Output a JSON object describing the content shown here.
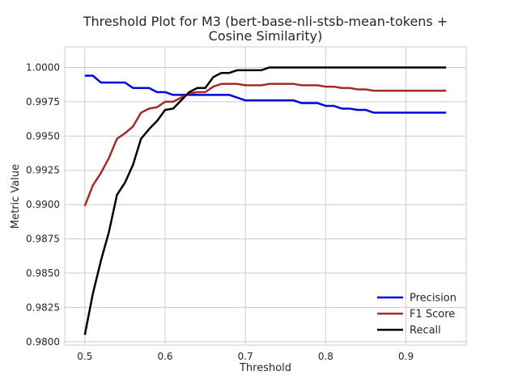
{
  "chart_data": {
    "type": "line",
    "title": "Threshold Plot for M3 (bert-base-nli-stsb-mean-tokens +",
    "title_line2": "Cosine Similarity)",
    "xlabel": "Threshold",
    "ylabel": "Metric Value",
    "xlim": [
      0.475,
      0.975
    ],
    "ylim": [
      0.97975,
      1.0015
    ],
    "x_ticks": [
      0.5,
      0.6,
      0.7,
      0.8,
      0.9
    ],
    "x_tick_labels": [
      "0.5",
      "0.6",
      "0.7",
      "0.8",
      "0.9"
    ],
    "y_ticks": [
      0.98,
      0.9825,
      0.985,
      0.9875,
      0.99,
      0.9925,
      0.995,
      0.9975,
      1.0
    ],
    "y_tick_labels": [
      "0.9800",
      "0.9825",
      "0.9850",
      "0.9875",
      "0.9900",
      "0.9925",
      "0.9950",
      "0.9975",
      "1.0000"
    ],
    "grid": true,
    "legend_position": "bottom-right",
    "x": [
      0.5,
      0.51,
      0.52,
      0.53,
      0.54,
      0.55,
      0.56,
      0.57,
      0.58,
      0.59,
      0.6,
      0.61,
      0.62,
      0.63,
      0.64,
      0.65,
      0.66,
      0.67,
      0.68,
      0.69,
      0.7,
      0.71,
      0.72,
      0.73,
      0.74,
      0.75,
      0.76,
      0.77,
      0.78,
      0.79,
      0.8,
      0.81,
      0.82,
      0.83,
      0.84,
      0.85,
      0.86,
      0.87,
      0.88,
      0.89,
      0.9,
      0.91,
      0.92,
      0.93,
      0.94,
      0.95
    ],
    "series": [
      {
        "name": "Precision",
        "color": "#0000dd",
        "values": [
          0.9994,
          0.9994,
          0.9989,
          0.9989,
          0.9989,
          0.9989,
          0.9985,
          0.9985,
          0.9985,
          0.9982,
          0.9982,
          0.998,
          0.998,
          0.998,
          0.998,
          0.998,
          0.998,
          0.998,
          0.998,
          0.9978,
          0.9976,
          0.9976,
          0.9976,
          0.9976,
          0.9976,
          0.9976,
          0.9976,
          0.9974,
          0.9974,
          0.9974,
          0.9972,
          0.9972,
          0.997,
          0.997,
          0.9969,
          0.9969,
          0.9967,
          0.9967,
          0.9967,
          0.9967,
          0.9967,
          0.9967,
          0.9967,
          0.9967,
          0.9967,
          0.9967
        ]
      },
      {
        "name": "F1 Score",
        "color": "#a52a2a",
        "values": [
          0.9899,
          0.9914,
          0.9923,
          0.9934,
          0.9948,
          0.9952,
          0.9957,
          0.9967,
          0.997,
          0.9971,
          0.9975,
          0.9975,
          0.9978,
          0.9981,
          0.9982,
          0.9982,
          0.9986,
          0.9988,
          0.9988,
          0.9988,
          0.9987,
          0.9987,
          0.9987,
          0.9988,
          0.9988,
          0.9988,
          0.9988,
          0.9987,
          0.9987,
          0.9987,
          0.9986,
          0.9986,
          0.9985,
          0.9985,
          0.9984,
          0.9984,
          0.9983,
          0.9983,
          0.9983,
          0.9983,
          0.9983,
          0.9983,
          0.9983,
          0.9983,
          0.9983,
          0.9983
        ]
      },
      {
        "name": "Recall",
        "color": "#000000",
        "values": [
          0.9805,
          0.9835,
          0.9859,
          0.988,
          0.9907,
          0.9916,
          0.9929,
          0.9948,
          0.9955,
          0.9961,
          0.9969,
          0.997,
          0.9976,
          0.9982,
          0.9985,
          0.9985,
          0.9993,
          0.9996,
          0.9996,
          0.9998,
          0.9998,
          0.9998,
          0.9998,
          1.0,
          1.0,
          1.0,
          1.0,
          1.0,
          1.0,
          1.0,
          1.0,
          1.0,
          1.0,
          1.0,
          1.0,
          1.0,
          1.0,
          1.0,
          1.0,
          1.0,
          1.0,
          1.0,
          1.0,
          1.0,
          1.0,
          1.0
        ]
      }
    ]
  }
}
